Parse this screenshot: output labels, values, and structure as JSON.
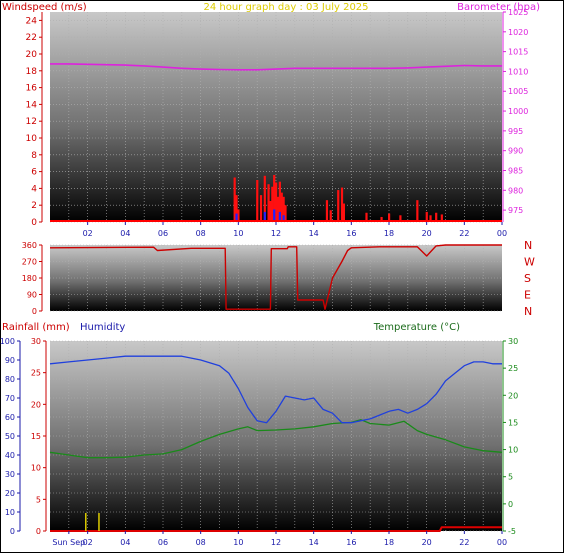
{
  "header": {
    "title": "24 hour graph day : 03 July 2025"
  },
  "colors": {
    "wind": "#cc0000",
    "gust_bar": "#ff1010",
    "avg_bar": "#2020ff",
    "barometer": "#dd22dd",
    "title": "#ddcc00",
    "humidity": "#2040dd",
    "temperature": "#1a8a1a",
    "rain": "#dd0000",
    "rain_axis": "#cc0000",
    "hum_axis": "#1a1aaa",
    "temp_label": "#1a6a1a"
  },
  "chart_data": [
    {
      "type": "line",
      "panel": "wind-barometer",
      "left_axis_label": "Windspeed (m/s)",
      "right_axis_label": "Barometer (hpa)",
      "left_ylim": [
        0,
        25
      ],
      "left_ticks": [
        "0",
        "2",
        "4",
        "6",
        "8",
        "10",
        "12",
        "14",
        "16",
        "18",
        "20",
        "22",
        "24"
      ],
      "right_ylim": [
        972,
        1025
      ],
      "right_ticks": [
        "975",
        "980",
        "985",
        "990",
        "995",
        "1000",
        "1005",
        "1010",
        "1015",
        "1020",
        "1025"
      ],
      "xlim": [
        0,
        24
      ],
      "x_ticks": [
        "02",
        "04",
        "06",
        "08",
        "10",
        "12",
        "14",
        "16",
        "18",
        "20",
        "22",
        "00"
      ],
      "grid": true,
      "series": [
        {
          "name": "Barometer (hpa)",
          "axis": "right",
          "color_key": "barometer",
          "x": [
            0,
            1,
            2,
            3,
            4,
            5,
            6,
            7,
            8,
            9,
            10,
            11,
            12,
            13,
            14,
            15,
            16,
            17,
            18,
            19,
            20,
            21,
            22,
            23,
            24
          ],
          "y": [
            1011.9,
            1011.9,
            1011.8,
            1011.7,
            1011.6,
            1011.4,
            1011.1,
            1010.8,
            1010.6,
            1010.5,
            1010.4,
            1010.4,
            1010.6,
            1010.8,
            1010.8,
            1010.8,
            1010.8,
            1010.8,
            1010.8,
            1010.9,
            1011.1,
            1011.3,
            1011.5,
            1011.4,
            1011.4
          ]
        }
      ],
      "bars": [
        {
          "name": "Gust",
          "color_key": "gust_bar",
          "x": [
            9.8,
            9.9,
            10.0,
            11.0,
            11.2,
            11.4,
            11.6,
            11.7,
            11.8,
            11.9,
            12.0,
            12.1,
            12.2,
            12.3,
            12.4,
            12.5,
            14.7,
            14.9,
            15.3,
            15.5,
            15.6,
            16.8,
            17.6,
            18.0,
            18.6,
            19.5,
            20.0,
            20.2,
            20.5,
            20.8
          ],
          "y": [
            5.3,
            3.2,
            1.5,
            5.0,
            3.2,
            5.5,
            4.5,
            2.5,
            4.2,
            5.6,
            4.7,
            3.0,
            4.8,
            3.5,
            3.0,
            2.0,
            2.6,
            1.4,
            3.8,
            4.1,
            2.2,
            1.1,
            0.6,
            1.0,
            0.8,
            2.6,
            1.2,
            0.8,
            1.1,
            0.9
          ]
        },
        {
          "name": "Average",
          "color_key": "avg_bar",
          "x": [
            9.9,
            11.4,
            11.9,
            12.2,
            12.4
          ],
          "y": [
            1.0,
            1.2,
            1.5,
            1.2,
            0.8
          ]
        }
      ]
    },
    {
      "type": "line",
      "panel": "wind-direction",
      "left_ticks": [
        "0",
        "90",
        "180",
        "270",
        "360"
      ],
      "left_ylim": [
        0,
        360
      ],
      "right_ticks": [
        "N",
        "W",
        "S",
        "E",
        "N"
      ],
      "xlim": [
        0,
        24
      ],
      "grid": true,
      "series": [
        {
          "name": "Direction",
          "color_key": "wind",
          "x": [
            0,
            5.5,
            5.7,
            7.5,
            9.3,
            9.35,
            11.7,
            11.75,
            12.6,
            12.65,
            13.1,
            13.15,
            14.5,
            14.6,
            15.0,
            15.5,
            15.8,
            16.0,
            17.5,
            19.5,
            20.0,
            20.5,
            21.0,
            24
          ],
          "y": [
            345,
            348,
            330,
            342,
            342,
            10,
            10,
            340,
            340,
            350,
            350,
            60,
            60,
            10,
            180,
            270,
            330,
            345,
            350,
            350,
            300,
            355,
            360,
            360
          ]
        }
      ]
    },
    {
      "type": "line",
      "panel": "rain-humidity-temperature",
      "rain_axis_label": "Rainfall (mm)",
      "humidity_axis_label": "Humidity",
      "temp_axis_label": "Temperature (°C)",
      "humidity_ylim": [
        0,
        100
      ],
      "humidity_ticks": [
        "0",
        "10",
        "20",
        "30",
        "40",
        "50",
        "60",
        "70",
        "80",
        "90",
        "100"
      ],
      "rain_ylim": [
        0,
        30
      ],
      "rain_ticks": [
        "0",
        "5",
        "10",
        "15",
        "20",
        "25",
        "30"
      ],
      "temp_ylim": [
        -5,
        30
      ],
      "temp_ticks": [
        "-5",
        "0",
        "5",
        "10",
        "15",
        "20",
        "25",
        "30"
      ],
      "xlim": [
        0,
        24
      ],
      "x_ticks": [
        "Sun Sep",
        "02",
        "04",
        "06",
        "08",
        "10",
        "12",
        "14",
        "16",
        "18",
        "20",
        "22",
        "00"
      ],
      "grid": true,
      "series": [
        {
          "name": "Humidity",
          "axis": "humidity",
          "color_key": "humidity",
          "x": [
            0,
            1,
            2,
            3,
            4,
            5,
            6,
            7,
            7.5,
            8,
            9,
            9.5,
            10,
            10.5,
            11,
            11.5,
            12,
            12.5,
            13,
            13.5,
            14,
            14.5,
            15,
            15.5,
            16,
            16.5,
            17,
            17.5,
            18,
            18.5,
            19,
            19.5,
            20,
            20.5,
            21,
            21.5,
            22,
            22.5,
            23,
            23.5,
            24
          ],
          "y": [
            88,
            89,
            90,
            91,
            92,
            92,
            92,
            92,
            91,
            90,
            87,
            83,
            75,
            65,
            58,
            57,
            63,
            71,
            70,
            69,
            70,
            64,
            62,
            57,
            57,
            58,
            59,
            61,
            63,
            64,
            62,
            64,
            67,
            72,
            79,
            83,
            87,
            89,
            89,
            88,
            88
          ]
        },
        {
          "name": "Temperature",
          "axis": "temp",
          "color_key": "temperature",
          "x": [
            0,
            1,
            2,
            3,
            4,
            5,
            6,
            7,
            8,
            9,
            10,
            10.5,
            11,
            12,
            13,
            14,
            15,
            16,
            16.5,
            17,
            18,
            18.8,
            19.5,
            20,
            21,
            22,
            23,
            24
          ],
          "y": [
            9.5,
            9.0,
            8.5,
            8.5,
            8.6,
            9.0,
            9.2,
            10.0,
            11.5,
            12.8,
            13.8,
            14.2,
            13.5,
            13.6,
            13.8,
            14.2,
            14.8,
            15.0,
            15.5,
            14.8,
            14.5,
            15.2,
            13.5,
            12.8,
            11.8,
            10.5,
            9.8,
            9.5
          ]
        },
        {
          "name": "Rainfall",
          "axis": "rain",
          "color_key": "rain",
          "x": [
            0,
            20.7,
            20.8,
            23.9,
            24
          ],
          "y": [
            0,
            0,
            0.6,
            0.6,
            0.6
          ]
        }
      ],
      "markers": [
        {
          "name": "day-marker",
          "x": 1.9
        },
        {
          "name": "day-marker",
          "x": 2.6
        }
      ]
    }
  ]
}
